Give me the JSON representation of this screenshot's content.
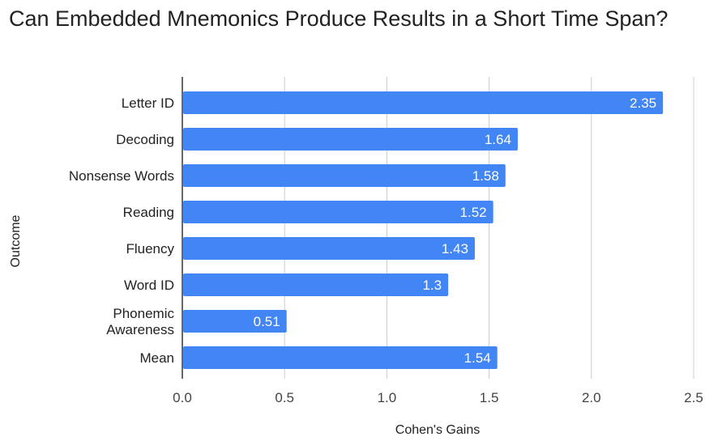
{
  "title": "Can Embedded Mnemonics Produce Results in a Short Time Span?",
  "colors": {
    "bar": "#4285f4",
    "grid": "#cccccc",
    "axis": "#333333",
    "bar_label": "#ffffff"
  },
  "chart_data": {
    "type": "bar",
    "orientation": "horizontal",
    "title": "Can Embedded Mnemonics Produce Results in a Short Time Span?",
    "xlabel": "Cohen's Gains",
    "ylabel": "Outcome",
    "categories": [
      [
        "Letter  ID"
      ],
      [
        "Decoding"
      ],
      [
        "Nonsense Words"
      ],
      [
        "Reading"
      ],
      [
        "Fluency"
      ],
      [
        "Word ID"
      ],
      [
        "Phonemic",
        "Awareness"
      ],
      [
        "Mean"
      ]
    ],
    "values": [
      2.35,
      1.64,
      1.58,
      1.52,
      1.43,
      1.3,
      0.51,
      1.54
    ],
    "value_labels": [
      "2.35",
      "1.64",
      "1.58",
      "1.52",
      "1.43",
      "1.3",
      "0.51",
      "1.54"
    ],
    "xlim": [
      0,
      2.5
    ],
    "ticks": [
      0,
      0.5,
      1.0,
      1.5,
      2.0,
      2.5
    ],
    "tick_labels": [
      "0.0",
      "0.5",
      "1.0",
      "1.5",
      "2.0",
      "2.5"
    ],
    "grid": true,
    "legend": "none"
  }
}
